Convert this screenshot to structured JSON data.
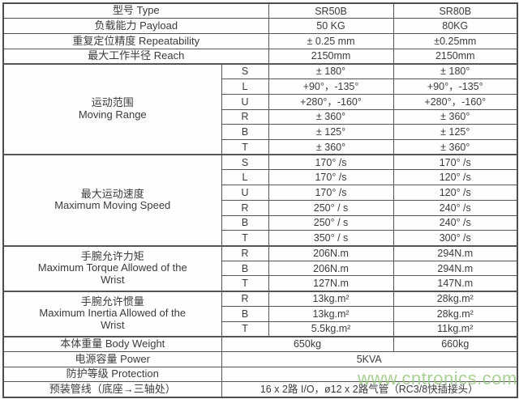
{
  "watermark": {
    "text": "www.cntronics.com",
    "color": "#94c57a"
  },
  "table": {
    "rows_top": [
      {
        "label": "型号 Type",
        "v1": "SR50B",
        "v2": "SR80B"
      },
      {
        "label": "负载能力 Payload",
        "v1": "50 KG",
        "v2": "80KG"
      },
      {
        "label": "重复定位精度 Repeatability",
        "v1": "± 0.25 mm",
        "v2": "±0.25mm"
      },
      {
        "label": "最大工作半径 Reach",
        "v1": "2150mm",
        "v2": "2150mm"
      }
    ],
    "sections": [
      {
        "zh": "运动范围",
        "en": "Moving Range",
        "rows": [
          {
            "axis": "S",
            "v1": "± 180°",
            "v2": "± 180°"
          },
          {
            "axis": "L",
            "v1": "+90°，-135°",
            "v2": "+90°，-135°"
          },
          {
            "axis": "U",
            "v1": "+280°，-160°",
            "v2": "+280°，-160°"
          },
          {
            "axis": "R",
            "v1": "± 360°",
            "v2": "± 360°"
          },
          {
            "axis": "B",
            "v1": "± 125°",
            "v2": "± 125°"
          },
          {
            "axis": "T",
            "v1": "± 360°",
            "v2": "± 360°"
          }
        ]
      },
      {
        "zh": "最大运动速度",
        "en": "Maximum Moving Speed",
        "rows": [
          {
            "axis": "S",
            "v1": "170° /s",
            "v2": "170° /s"
          },
          {
            "axis": "L",
            "v1": "170° /s",
            "v2": "120° /s"
          },
          {
            "axis": "U",
            "v1": "170° /s",
            "v2": "120° /s"
          },
          {
            "axis": "R",
            "v1": "250° / s",
            "v2": "240° /s"
          },
          {
            "axis": "B",
            "v1": "250° / s",
            "v2": "240° /s"
          },
          {
            "axis": "T",
            "v1": "350° / s",
            "v2": "300° /s"
          }
        ]
      },
      {
        "zh": "手腕允许力矩",
        "en": "Maximum Torque Allowed of the Wrist",
        "rows": [
          {
            "axis": "R",
            "v1": "206N.m",
            "v2": "294N.m"
          },
          {
            "axis": "B",
            "v1": "206N.m",
            "v2": "294N.m"
          },
          {
            "axis": "T",
            "v1": "127N.m",
            "v2": "147N.m"
          }
        ]
      },
      {
        "zh": "手腕允许惯量",
        "en": "Maximum Inertia Allowed of the Wrist",
        "rows": [
          {
            "axis": "R",
            "v1": "13kg.m²",
            "v2": "28kg.m²"
          },
          {
            "axis": "B",
            "v1": "13kg.m²",
            "v2": "28kg.m²"
          },
          {
            "axis": "T",
            "v1": "5.5kg.m²",
            "v2": "11kg.m²"
          }
        ]
      }
    ],
    "rows_bottom": {
      "weight": {
        "label": "本体重量 Body Weight",
        "v1": "650kg",
        "v2": "660kg"
      },
      "power": {
        "label": "电源容量 Power",
        "value": "5KVA"
      },
      "protection": {
        "label": "防护等级 Protection",
        "value": ""
      },
      "piping": {
        "label": "预装管线（底座→三轴处）",
        "value": "16 x 2路 I/O，ø12 x 2路气管（RC3/8快插接头）"
      }
    }
  }
}
